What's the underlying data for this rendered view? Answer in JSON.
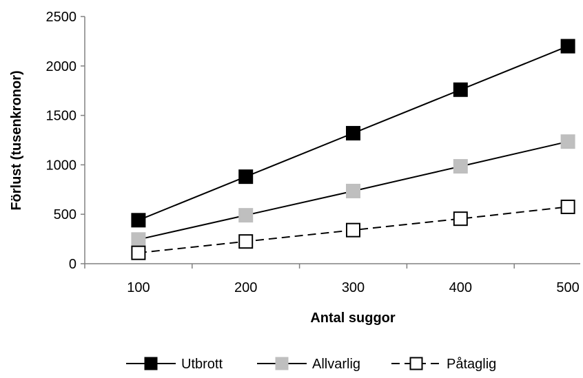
{
  "chart_data": {
    "type": "line",
    "title": "",
    "xlabel": "Antal suggor",
    "ylabel": "Förlust (tusenkronor)",
    "x": [
      100,
      200,
      300,
      400,
      500
    ],
    "x_tick_labels": [
      "100",
      "200",
      "300",
      "400",
      "500"
    ],
    "ylim": [
      0,
      2500
    ],
    "y_ticks": [
      0,
      500,
      1000,
      1500,
      2000,
      2500
    ],
    "y_tick_labels": [
      "0",
      "500",
      "1000",
      "1500",
      "2000",
      "2500"
    ],
    "grid": false,
    "legend_position": "bottom",
    "series": [
      {
        "name": "Utbrott",
        "values": [
          440,
          880,
          1320,
          1760,
          2200
        ],
        "line_color": "#000000",
        "marker_fill": "#000000",
        "marker_stroke": "#000000",
        "dashed": false
      },
      {
        "name": "Allvarlig",
        "values": [
          245,
          490,
          735,
          985,
          1235
        ],
        "line_color": "#000000",
        "marker_fill": "#bfbfbf",
        "marker_stroke": "#bfbfbf",
        "dashed": false
      },
      {
        "name": "Påtaglig",
        "values": [
          110,
          225,
          340,
          455,
          575
        ],
        "line_color": "#000000",
        "marker_fill": "#ffffff",
        "marker_stroke": "#000000",
        "dashed": true
      }
    ]
  }
}
